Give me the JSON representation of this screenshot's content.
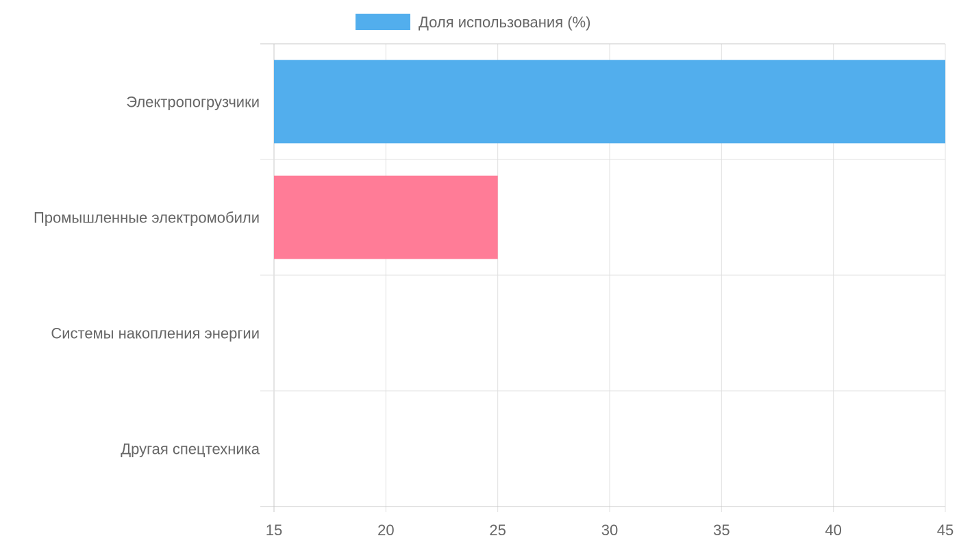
{
  "chart_data": {
    "type": "bar",
    "orientation": "horizontal",
    "categories": [
      "Электропогрузчики",
      "Промышленные электромобили",
      "Системы накопления энергии",
      "Другая спецтехника"
    ],
    "series": [
      {
        "name": "Доля использования (%)",
        "values": [
          45,
          25,
          15,
          15
        ]
      }
    ],
    "bar_colors": [
      "#52aeed",
      "#ff7c97",
      "#52aeed",
      "#ff7c97"
    ],
    "legend_color": "#52aeed",
    "xlim": [
      15,
      45
    ],
    "xticks": [
      "15",
      "20",
      "25",
      "30",
      "35",
      "40",
      "45"
    ],
    "grid": true,
    "legend_position": "top"
  }
}
